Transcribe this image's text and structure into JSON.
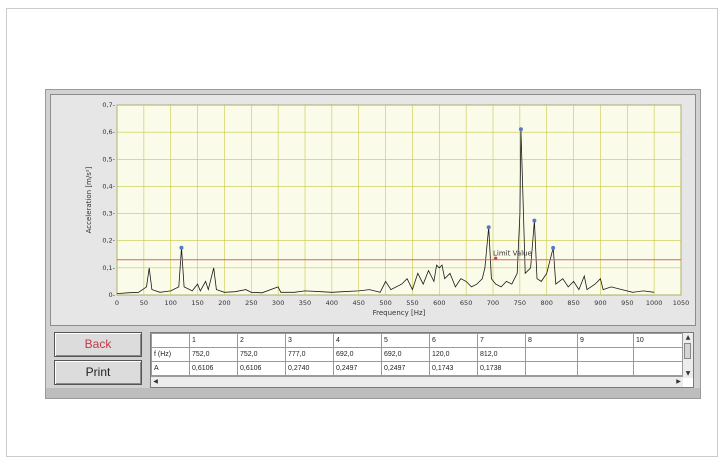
{
  "buttons": {
    "back": "Back",
    "print": "Print"
  },
  "table": {
    "header": [
      "",
      "1",
      "2",
      "3",
      "4",
      "5",
      "6",
      "7",
      "8",
      "9",
      "10"
    ],
    "rows": [
      [
        "f (Hz)",
        "752,0",
        "752,0",
        "777,0",
        "692,0",
        "692,0",
        "120,0",
        "812,0",
        "",
        "",
        ""
      ],
      [
        "A",
        "0,6106",
        "0,6106",
        "0,2740",
        "0,2497",
        "0,2497",
        "0,1743",
        "0,1738",
        "",
        "",
        ""
      ]
    ]
  },
  "colors": {
    "grid": "#c8c84a",
    "plot_bg": "#fbfbea",
    "limit_line": "#e06060",
    "peak_marker": "#5a78c8",
    "signal": "#1a1a1a"
  },
  "chart_data": {
    "type": "line",
    "xlabel": "Frequency [Hz]",
    "ylabel": "Acceleration [m/s²]",
    "xlim": [
      0,
      1050
    ],
    "ylim": [
      0,
      0.7
    ],
    "x_ticks": [
      0,
      50,
      100,
      150,
      200,
      250,
      300,
      350,
      400,
      450,
      500,
      550,
      600,
      650,
      700,
      750,
      800,
      850,
      900,
      950,
      1000,
      1050
    ],
    "y_ticks": [
      0,
      0.1,
      0.2,
      0.3,
      0.4,
      0.5,
      0.6,
      0.7
    ],
    "y_tick_labels": [
      "0-",
      "0,1-",
      "0,2-",
      "0,3-",
      "0,4-",
      "0,5-",
      "0,6-",
      "0,7-"
    ],
    "grid": true,
    "limit_value": {
      "label": "Limit Value",
      "y": 0.13
    },
    "peaks": [
      {
        "x": 752,
        "y": 0.6106
      },
      {
        "x": 777,
        "y": 0.274
      },
      {
        "x": 692,
        "y": 0.2497
      },
      {
        "x": 120,
        "y": 0.1743
      },
      {
        "x": 812,
        "y": 0.1738
      }
    ],
    "spectrum": [
      [
        0,
        0.005
      ],
      [
        20,
        0.008
      ],
      [
        40,
        0.01
      ],
      [
        55,
        0.03
      ],
      [
        60,
        0.1
      ],
      [
        65,
        0.02
      ],
      [
        80,
        0.01
      ],
      [
        100,
        0.015
      ],
      [
        115,
        0.03
      ],
      [
        120,
        0.174
      ],
      [
        125,
        0.03
      ],
      [
        140,
        0.015
      ],
      [
        150,
        0.04
      ],
      [
        155,
        0.015
      ],
      [
        165,
        0.05
      ],
      [
        170,
        0.02
      ],
      [
        180,
        0.1
      ],
      [
        185,
        0.02
      ],
      [
        200,
        0.01
      ],
      [
        220,
        0.012
      ],
      [
        240,
        0.02
      ],
      [
        250,
        0.01
      ],
      [
        270,
        0.008
      ],
      [
        300,
        0.03
      ],
      [
        305,
        0.01
      ],
      [
        330,
        0.01
      ],
      [
        350,
        0.015
      ],
      [
        380,
        0.012
      ],
      [
        400,
        0.01
      ],
      [
        420,
        0.012
      ],
      [
        450,
        0.015
      ],
      [
        470,
        0.02
      ],
      [
        490,
        0.01
      ],
      [
        500,
        0.05
      ],
      [
        510,
        0.02
      ],
      [
        530,
        0.04
      ],
      [
        540,
        0.06
      ],
      [
        550,
        0.02
      ],
      [
        560,
        0.08
      ],
      [
        570,
        0.04
      ],
      [
        580,
        0.09
      ],
      [
        590,
        0.05
      ],
      [
        595,
        0.11
      ],
      [
        600,
        0.1
      ],
      [
        605,
        0.11
      ],
      [
        610,
        0.06
      ],
      [
        620,
        0.08
      ],
      [
        630,
        0.03
      ],
      [
        640,
        0.06
      ],
      [
        650,
        0.05
      ],
      [
        660,
        0.03
      ],
      [
        670,
        0.04
      ],
      [
        680,
        0.06
      ],
      [
        685,
        0.1
      ],
      [
        692,
        0.25
      ],
      [
        697,
        0.06
      ],
      [
        705,
        0.04
      ],
      [
        715,
        0.03
      ],
      [
        725,
        0.05
      ],
      [
        735,
        0.04
      ],
      [
        745,
        0.08
      ],
      [
        750,
        0.3
      ],
      [
        752,
        0.611
      ],
      [
        755,
        0.42
      ],
      [
        760,
        0.08
      ],
      [
        770,
        0.1
      ],
      [
        777,
        0.274
      ],
      [
        782,
        0.06
      ],
      [
        790,
        0.05
      ],
      [
        800,
        0.08
      ],
      [
        812,
        0.174
      ],
      [
        817,
        0.04
      ],
      [
        830,
        0.06
      ],
      [
        840,
        0.03
      ],
      [
        850,
        0.05
      ],
      [
        860,
        0.02
      ],
      [
        870,
        0.07
      ],
      [
        875,
        0.02
      ],
      [
        890,
        0.04
      ],
      [
        900,
        0.06
      ],
      [
        905,
        0.02
      ],
      [
        920,
        0.03
      ],
      [
        940,
        0.02
      ],
      [
        960,
        0.01
      ],
      [
        980,
        0.015
      ],
      [
        1000,
        0.01
      ]
    ]
  }
}
